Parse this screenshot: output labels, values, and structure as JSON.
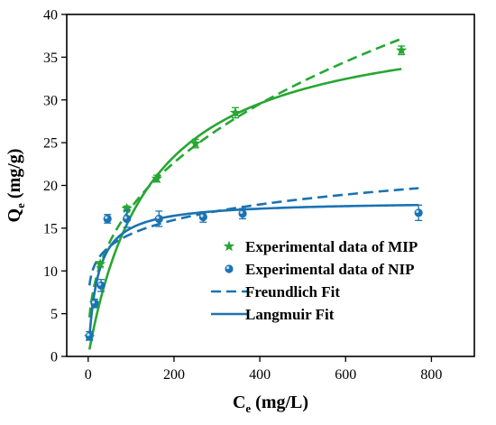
{
  "chart_data": {
    "type": "scatter",
    "xlabel": {
      "main": "C",
      "sub": "e",
      "unit": " (mg/L)"
    },
    "ylabel": {
      "main": "Q",
      "sub": "e",
      "unit": " (mg/g)"
    },
    "xlim": [
      -50,
      900
    ],
    "ylim": [
      0,
      40
    ],
    "xticks": [
      0,
      200,
      400,
      600,
      800
    ],
    "yticks": [
      0,
      5,
      10,
      15,
      20,
      25,
      30,
      35,
      40
    ],
    "grid": false,
    "legend_position": "bottom-right",
    "colors": {
      "mip": "#27a632",
      "nip": "#1a73b3"
    },
    "series": [
      {
        "name": "Experimental data of MIP",
        "marker": "star",
        "color": "#27a632",
        "points": [
          {
            "x": 3,
            "y": 2.3,
            "err": 0.3
          },
          {
            "x": 15,
            "y": 6.2,
            "err": 0.3
          },
          {
            "x": 28,
            "y": 10.8,
            "err": 0.3
          },
          {
            "x": 90,
            "y": 17.3,
            "err": 0.3
          },
          {
            "x": 160,
            "y": 20.8,
            "err": 0.4
          },
          {
            "x": 250,
            "y": 24.9,
            "err": 0.5
          },
          {
            "x": 343,
            "y": 28.5,
            "err": 0.6
          },
          {
            "x": 730,
            "y": 35.8,
            "err": 0.5
          }
        ]
      },
      {
        "name": "Experimental data of NIP",
        "marker": "circle",
        "color": "#1a73b3",
        "points": [
          {
            "x": 3,
            "y": 2.4,
            "err": 0.5
          },
          {
            "x": 15,
            "y": 6.2,
            "err": 0.5
          },
          {
            "x": 30,
            "y": 8.3,
            "err": 0.7
          },
          {
            "x": 45,
            "y": 16.1,
            "err": 0.5
          },
          {
            "x": 90,
            "y": 16.1,
            "err": 1.0
          },
          {
            "x": 165,
            "y": 16.1,
            "err": 0.9
          },
          {
            "x": 268,
            "y": 16.3,
            "err": 0.6
          },
          {
            "x": 360,
            "y": 16.7,
            "err": 0.6
          },
          {
            "x": 770,
            "y": 16.8,
            "err": 0.9
          }
        ]
      },
      {
        "name": "Freundlich Fit",
        "style": "dashed",
        "fits": [
          {
            "color": "#27a632",
            "model": "freundlich",
            "K": 3.0,
            "n": 2.62,
            "x_range": [
              3,
              730
            ]
          },
          {
            "color": "#1a73b3",
            "model": "freundlich",
            "K": 7.0,
            "n": 6.43,
            "x_range": [
              3,
              770
            ]
          }
        ]
      },
      {
        "name": "Langmuir Fit",
        "style": "solid",
        "fits": [
          {
            "color": "#27a632",
            "model": "langmuir",
            "Qm": 40.3,
            "KL": 0.0069,
            "x_range": [
              3,
              730
            ]
          },
          {
            "color": "#1a73b3",
            "model": "langmuir",
            "Qm": 18.2,
            "KL": 0.047,
            "x_range": [
              3,
              770
            ]
          }
        ]
      }
    ]
  }
}
